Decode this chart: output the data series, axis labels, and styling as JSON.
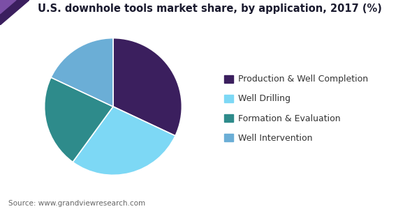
{
  "title": "U.S. downhole tools market share, by application, 2017 (%)",
  "labels": [
    "Production & Well Completion",
    "Well Drilling",
    "Formation & Evaluation",
    "Well Intervention"
  ],
  "values": [
    32,
    28,
    22,
    18
  ],
  "colors": [
    "#3b1f5e",
    "#7dd8f5",
    "#2e8b8b",
    "#6baed6"
  ],
  "startangle": 90,
  "source": "Source: www.grandviewresearch.com",
  "title_fontsize": 10.5,
  "legend_fontsize": 9,
  "source_fontsize": 7.5,
  "background_color": "#ffffff",
  "header_line_color": "#5b2d8e",
  "wedge_edge_color": "#ffffff",
  "wedge_linewidth": 1.2,
  "title_color": "#1a1a2e"
}
